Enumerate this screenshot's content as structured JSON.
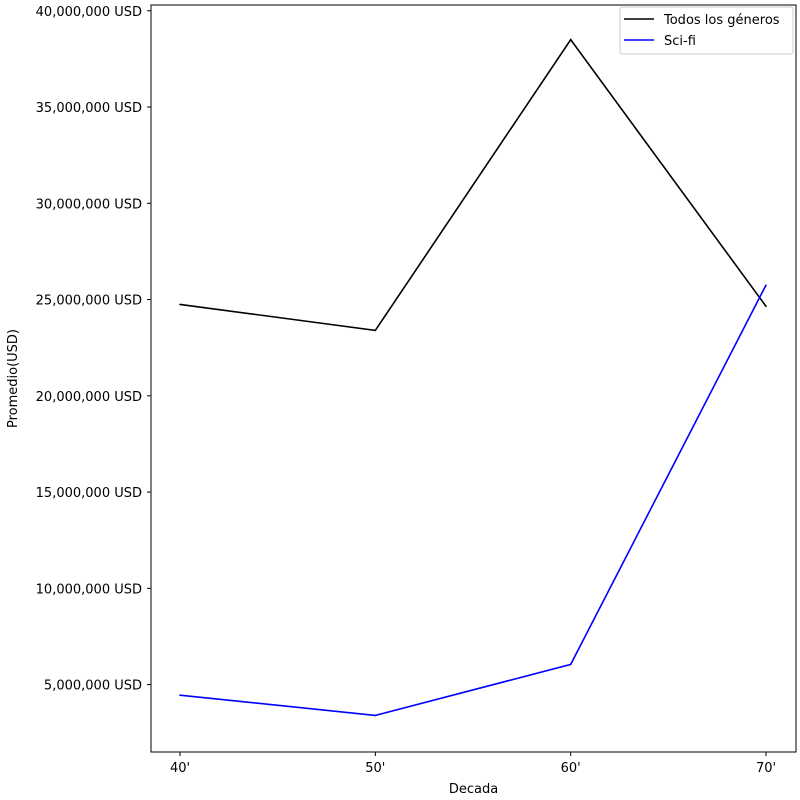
{
  "chart_data": {
    "type": "line",
    "title": "",
    "xlabel": "Decada",
    "ylabel": "Promedio(USD)",
    "categories": [
      "40'",
      "50'",
      "60'",
      "70'"
    ],
    "ylim": [
      1500000,
      40300000
    ],
    "yticks": [
      5000000,
      10000000,
      15000000,
      20000000,
      25000000,
      30000000,
      35000000,
      40000000
    ],
    "ytick_labels": [
      "5,000,000 USD",
      "10,000,000 USD",
      "15,000,000 USD",
      "20,000,000 USD",
      "25,000,000 USD",
      "30,000,000 USD",
      "35,000,000 USD",
      "40,000,000 USD"
    ],
    "grid": false,
    "legend_position": "top-right",
    "series": [
      {
        "name": "Todos los géneros",
        "color": "#000000",
        "values": [
          24750000,
          23400000,
          38500000,
          24650000
        ]
      },
      {
        "name": "Sci-fi",
        "color": "#0000ff",
        "values": [
          4450000,
          3400000,
          6050000,
          25750000
        ]
      }
    ]
  }
}
